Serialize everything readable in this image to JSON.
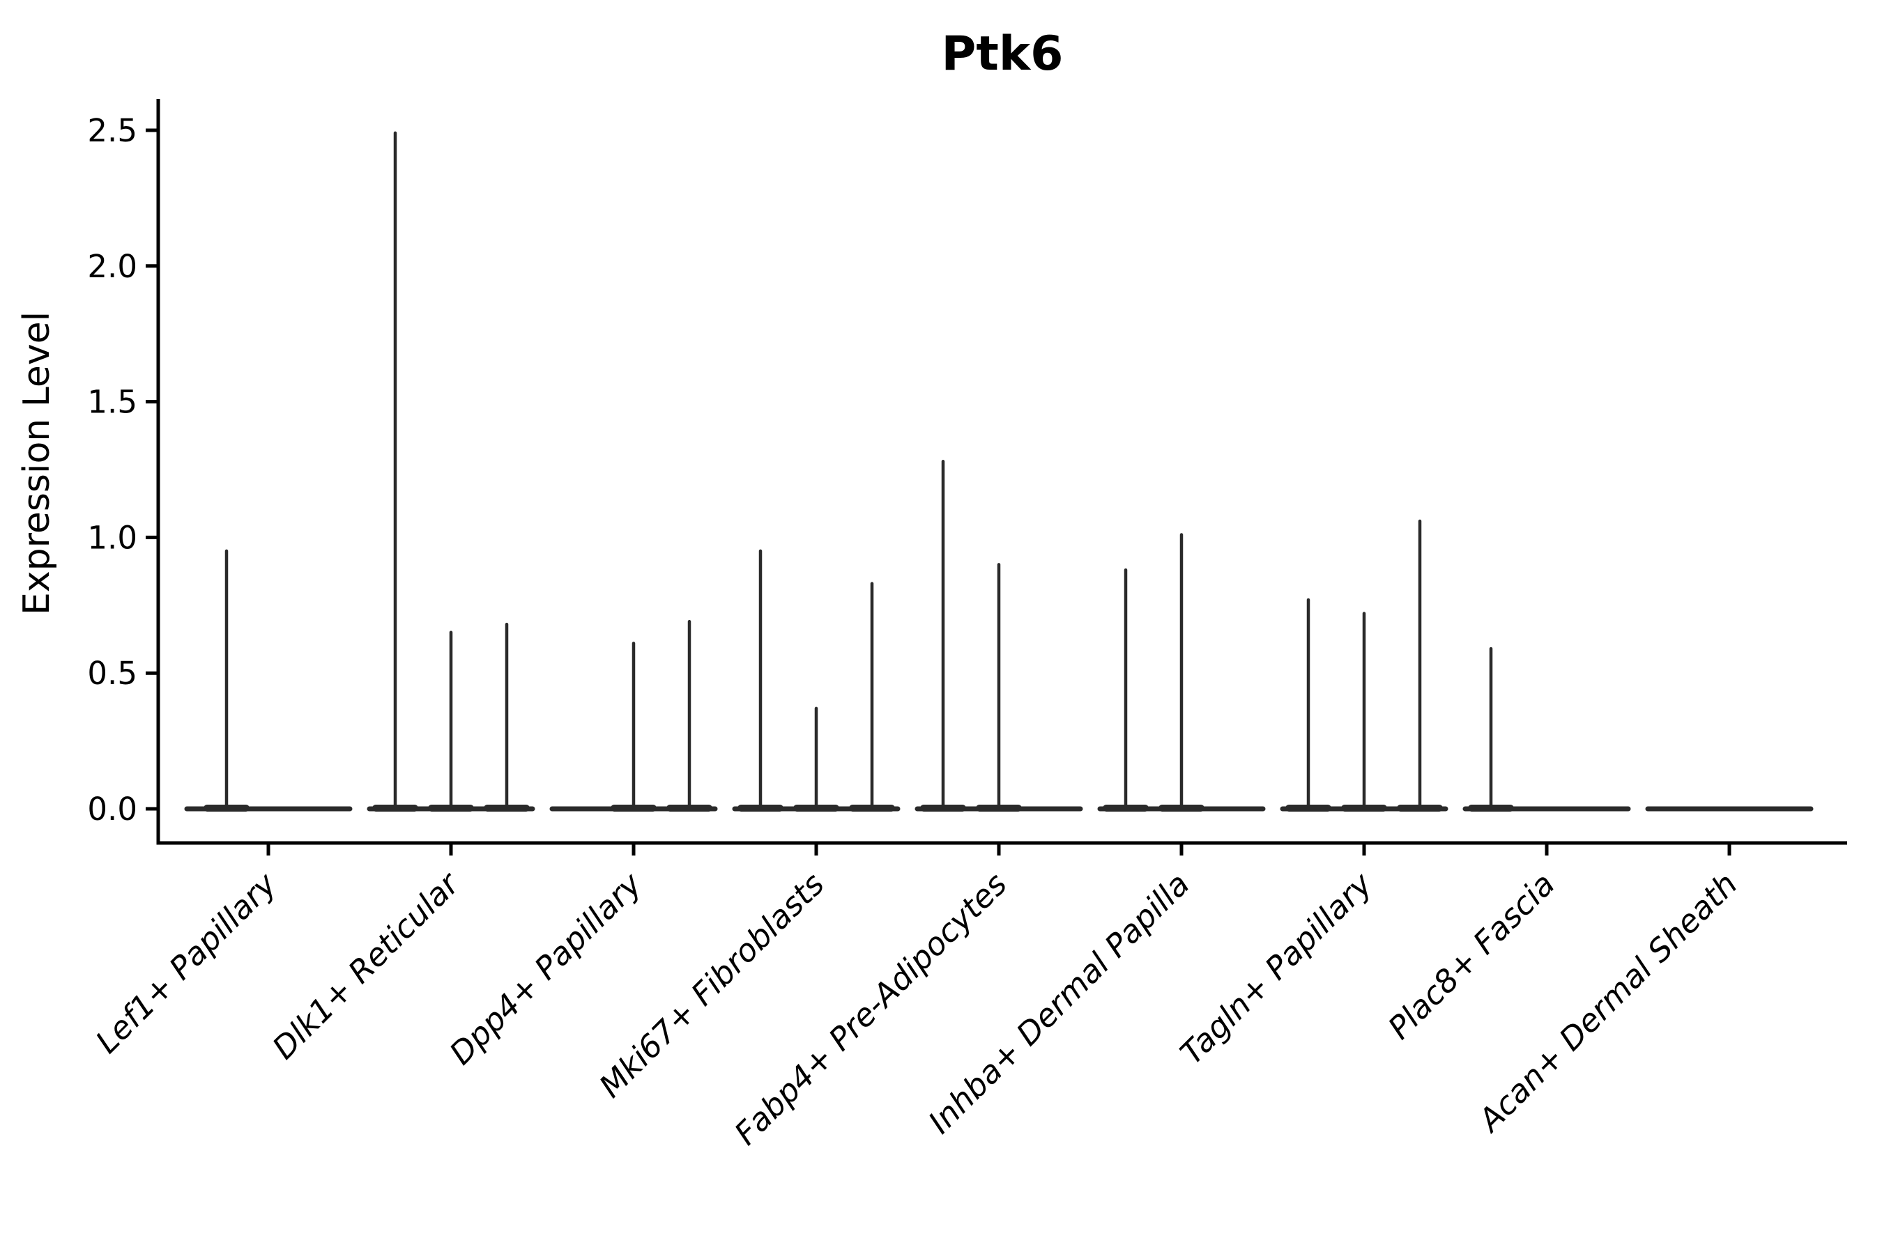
{
  "chart_data": {
    "type": "violin",
    "title": "Ptk6",
    "ylabel": "Expression Level",
    "xlabel": "",
    "yticks": [
      0.0,
      0.5,
      1.0,
      1.5,
      2.0,
      2.5
    ],
    "ytick_labels": [
      "0.0",
      "0.5",
      "1.0",
      "1.5",
      "2.0",
      "2.5"
    ],
    "ylim": [
      -0.13,
      2.62
    ],
    "grid": false,
    "legend": "none",
    "line_color": "#2a2a2a",
    "axis_color": "#000000",
    "background_color": "#ffffff",
    "categories": [
      "Lef1+ Papillary",
      "Dlk1+ Reticular",
      "Dpp4+ Papillary",
      "Mki67+ Fibroblasts",
      "Fabp4+ Pre-Adipocytes",
      "Inhba+ Dermal Papilla",
      "Tagln+ Papillary",
      "Plac8+ Fascia",
      "Acan+ Dermal Sheath"
    ],
    "violins": [
      {
        "label": "Lef1+ Papillary",
        "groups": 2,
        "max_values": [
          0.95,
          0
        ]
      },
      {
        "label": "Dlk1+ Reticular",
        "groups": 3,
        "max_values": [
          2.49,
          0.65,
          0.68
        ]
      },
      {
        "label": "Dpp4+ Papillary",
        "groups": 3,
        "max_values": [
          0,
          0.61,
          0.69
        ]
      },
      {
        "label": "Mki67+ Fibroblasts",
        "groups": 3,
        "max_values": [
          0.95,
          0.37,
          0.83
        ]
      },
      {
        "label": "Fabp4+ Pre-Adipocytes",
        "groups": 3,
        "max_values": [
          1.28,
          0.9,
          0
        ]
      },
      {
        "label": "Inhba+ Dermal Papilla",
        "groups": 3,
        "max_values": [
          0.88,
          1.01,
          0
        ]
      },
      {
        "label": "Tagln+ Papillary",
        "groups": 3,
        "max_values": [
          0.77,
          0.72,
          1.06
        ]
      },
      {
        "label": "Plac8+ Fascia",
        "groups": 3,
        "max_values": [
          0.59,
          0,
          0
        ]
      },
      {
        "label": "Acan+ Dermal Sheath",
        "groups": 3,
        "max_values": [
          0,
          0,
          0
        ]
      }
    ]
  }
}
